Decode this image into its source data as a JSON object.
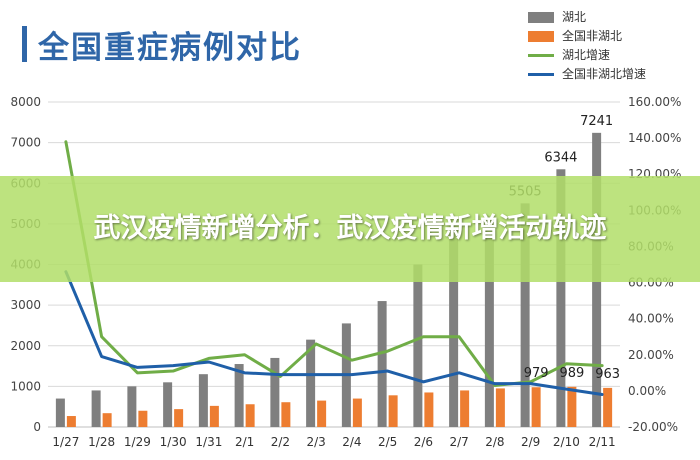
{
  "title": "全国重症病例对比",
  "overlay_text": "武汉疫情新增分析：武汉疫情新增活动轨迹",
  "legend": [
    {
      "label": "湖北",
      "kind": "box",
      "color": "#7f7f7f"
    },
    {
      "label": "全国非湖北",
      "kind": "box",
      "color": "#ed7d31"
    },
    {
      "label": "湖北增速",
      "kind": "line",
      "color": "#70ad47"
    },
    {
      "label": "全国非湖北增速",
      "kind": "line",
      "color": "#1f5fa8"
    }
  ],
  "chart_data": {
    "type": "bar",
    "title": "全国重症病例对比",
    "categories": [
      "1/27",
      "1/28",
      "1/29",
      "1/30",
      "1/31",
      "2/1",
      "2/2",
      "2/3",
      "2/4",
      "2/5",
      "2/6",
      "2/7",
      "2/8",
      "2/9",
      "2/10",
      "2/11"
    ],
    "series": [
      {
        "name": "湖北",
        "type": "bar",
        "axis": "left",
        "color": "#7f7f7f",
        "values": [
          700,
          900,
          1000,
          1100,
          1300,
          1550,
          1700,
          2150,
          2550,
          3100,
          4000,
          5000,
          5200,
          5505,
          6344,
          7241
        ]
      },
      {
        "name": "全国非湖北",
        "type": "bar",
        "axis": "left",
        "color": "#ed7d31",
        "values": [
          270,
          340,
          400,
          440,
          520,
          560,
          610,
          650,
          700,
          780,
          850,
          900,
          950,
          979,
          989,
          963
        ]
      },
      {
        "name": "湖北增速",
        "type": "line",
        "axis": "right",
        "color": "#70ad47",
        "values": [
          138,
          30,
          10,
          11,
          18,
          20,
          8,
          26,
          17,
          22,
          30,
          30,
          3,
          5,
          15,
          14
        ]
      },
      {
        "name": "全国非湖北增速",
        "type": "line",
        "axis": "right",
        "color": "#1f5fa8",
        "values": [
          66,
          19,
          13,
          14,
          16,
          10,
          9,
          9,
          9,
          11,
          5,
          10,
          4,
          4,
          1,
          -2
        ]
      }
    ],
    "data_labels": [
      {
        "category": "2/9",
        "value": 5505
      },
      {
        "category": "2/10",
        "value": 6344
      },
      {
        "category": "2/11",
        "value": 7241
      },
      {
        "category": "2/9",
        "value": 979
      },
      {
        "category": "2/10",
        "value": 989
      },
      {
        "category": "2/11",
        "value": 963
      }
    ],
    "y_left": {
      "min": 0,
      "max": 8000,
      "step": 1000,
      "ticks": [
        "0",
        "1000",
        "2000",
        "3000",
        "4000",
        "5000",
        "6000",
        "7000",
        "8000"
      ]
    },
    "y_right": {
      "min": -20,
      "max": 160,
      "step": 20,
      "ticks": [
        "-20.00%",
        "0.00%",
        "20.00%",
        "40.00%",
        "60.00%",
        "80.00%",
        "100.00%",
        "120.00%",
        "140.00%",
        "160.00%"
      ]
    },
    "grid": true,
    "legend_position": "top-right"
  }
}
